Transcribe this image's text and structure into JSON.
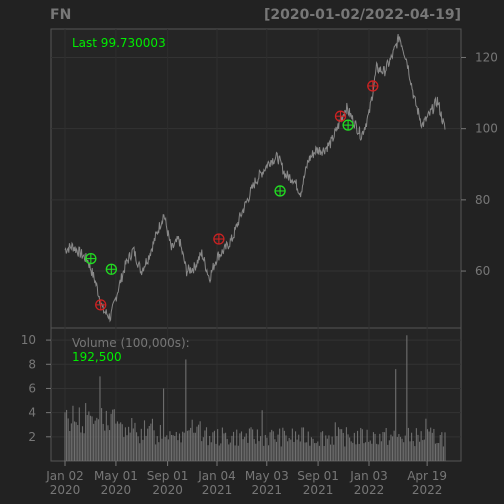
{
  "chart_data": {
    "type": "line",
    "symbol": "FN",
    "range_label": "[2020-01-02/2022-04-19]",
    "price_panel": {
      "last_label": "Last 99.730003",
      "ylim": [
        44,
        128
      ],
      "y_ticks": [
        60,
        80,
        100,
        120
      ],
      "series": [
        {
          "name": "close",
          "t": [
            0,
            0.02,
            0.04,
            0.06,
            0.08,
            0.1,
            0.12,
            0.14,
            0.16,
            0.18,
            0.2,
            0.22,
            0.24,
            0.26,
            0.28,
            0.3,
            0.32,
            0.34,
            0.36,
            0.38,
            0.4,
            0.42,
            0.44,
            0.46,
            0.48,
            0.5,
            0.52,
            0.54,
            0.56,
            0.58,
            0.6,
            0.62,
            0.64,
            0.66,
            0.68,
            0.7,
            0.72,
            0.74,
            0.76,
            0.78,
            0.8,
            0.82,
            0.84,
            0.86,
            0.88,
            0.9,
            0.92,
            0.94,
            0.96,
            0.98,
            1.0
          ],
          "values": [
            66,
            67,
            65,
            63,
            57,
            49,
            47,
            55,
            62,
            66,
            60,
            64,
            70,
            76,
            66,
            69,
            60,
            61,
            65,
            58,
            64,
            66,
            69,
            75,
            80,
            85,
            88,
            91,
            92,
            87,
            86,
            82,
            91,
            94,
            94,
            96,
            101,
            106,
            102,
            98,
            104,
            117,
            116,
            120,
            126,
            119,
            108,
            101,
            104,
            108,
            99.73
          ]
        }
      ],
      "signals": [
        {
          "t": 0.068,
          "value": 63.5,
          "kind": "buy"
        },
        {
          "t": 0.094,
          "value": 50.5,
          "kind": "sell"
        },
        {
          "t": 0.122,
          "value": 60.5,
          "kind": "buy"
        },
        {
          "t": 0.405,
          "value": 69,
          "kind": "sell"
        },
        {
          "t": 0.566,
          "value": 82.5,
          "kind": "buy"
        },
        {
          "t": 0.725,
          "value": 103.5,
          "kind": "sell"
        },
        {
          "t": 0.745,
          "value": 101,
          "kind": "buy"
        },
        {
          "t": 0.81,
          "value": 112,
          "kind": "sell"
        }
      ]
    },
    "volume_panel": {
      "label": "Volume (100,000s):",
      "last_value": "192,500",
      "ylim": [
        0,
        11
      ],
      "y_ticks": [
        2,
        4,
        6,
        8,
        10
      ],
      "spikes": [
        {
          "t": 0.09,
          "value": 7
        },
        {
          "t": 0.26,
          "value": 6
        },
        {
          "t": 0.32,
          "value": 8.4
        },
        {
          "t": 0.52,
          "value": 4.2
        },
        {
          "t": 0.71,
          "value": 3.2
        },
        {
          "t": 0.87,
          "value": 7.6
        },
        {
          "t": 0.9,
          "value": 10.4
        },
        {
          "t": 0.95,
          "value": 3.5
        }
      ]
    },
    "x_ticks": [
      {
        "t": 0.0,
        "line1": "Jan 02",
        "line2": "2020"
      },
      {
        "t": 0.134,
        "line1": "May 01",
        "line2": "2020"
      },
      {
        "t": 0.27,
        "line1": "Sep 01",
        "line2": "2020"
      },
      {
        "t": 0.4,
        "line1": "Jan 04",
        "line2": "2021"
      },
      {
        "t": 0.531,
        "line1": "May 03",
        "line2": "2021"
      },
      {
        "t": 0.666,
        "line1": "Sep 01",
        "line2": "2021"
      },
      {
        "t": 0.8,
        "line1": "Jan 03",
        "line2": "2022"
      },
      {
        "t": 0.953,
        "line1": "Apr 19",
        "line2": "2022"
      }
    ],
    "colors": {
      "line": "#888888",
      "buy": "#22dd22",
      "sell": "#cc2222",
      "text": "#777777",
      "highlight": "#00ee00"
    }
  }
}
